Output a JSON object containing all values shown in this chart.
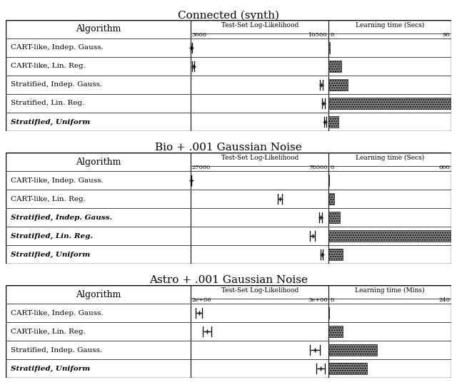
{
  "panels": [
    {
      "title": "Connected (synth)",
      "algorithms": [
        {
          "name": "CART-like, Indep. Gauss.",
          "italic": false,
          "bold": false
        },
        {
          "name": "CART-like, Lin. Reg.",
          "italic": false,
          "bold": false
        },
        {
          "name": "Stratified, Indep. Gauss.",
          "italic": false,
          "bold": false
        },
        {
          "name": "Stratified, Lin. Reg.",
          "italic": false,
          "bold": false
        },
        {
          "name": "Stratified, Uniform",
          "italic": true,
          "bold": true
        }
      ],
      "ll_label": "Test-Set Log-Likelihood",
      "ll_min": 3000,
      "ll_max": 10500,
      "time_label": "Learning time (Secs)",
      "time_min": 0,
      "time_max": 90,
      "ll_values": [
        3050,
        3150,
        10100,
        10200,
        10300
      ],
      "ll_errors": [
        40,
        60,
        70,
        80,
        50
      ],
      "time_values": [
        1,
        9,
        14,
        90,
        7
      ]
    },
    {
      "title": "Bio + .001 Gaussian Noise",
      "algorithms": [
        {
          "name": "CART-like, Indep. Gauss.",
          "italic": false,
          "bold": false
        },
        {
          "name": "CART-like, Lin. Reg.",
          "italic": false,
          "bold": false
        },
        {
          "name": "Stratified, Indep. Gauss.",
          "italic": true,
          "bold": true
        },
        {
          "name": "Stratified, Lin. Reg.",
          "italic": true,
          "bold": true
        },
        {
          "name": "Stratified, Uniform",
          "italic": true,
          "bold": true
        }
      ],
      "ll_label": "Test-Set Log-Likelihood",
      "ll_min": 27000,
      "ll_max": 78000,
      "time_label": "Learning time (Secs)",
      "time_min": 0,
      "time_max": 600,
      "ll_values": [
        27200,
        60000,
        75000,
        72000,
        75500
      ],
      "ll_errors": [
        200,
        700,
        600,
        900,
        400
      ],
      "time_values": [
        2,
        28,
        55,
        600,
        68
      ]
    },
    {
      "title": "Astro + .001 Gaussian Noise",
      "algorithms": [
        {
          "name": "CART-like, Indep. Gauss.",
          "italic": false,
          "bold": false
        },
        {
          "name": "CART-like, Lin. Reg.",
          "italic": false,
          "bold": false
        },
        {
          "name": "Stratified, Indep. Gauss.",
          "italic": false,
          "bold": false
        },
        {
          "name": "Stratified, Uniform",
          "italic": true,
          "bold": true
        }
      ],
      "ll_label": "Test-Set Log-Likelihood",
      "ll_min": 2000000,
      "ll_max": 3000000,
      "time_label": "Learning time (Mins)",
      "time_min": 0,
      "time_max": 240,
      "ll_values": [
        2060000,
        2120000,
        2900000,
        2940000
      ],
      "ll_errors": [
        25000,
        30000,
        35000,
        30000
      ],
      "time_values": [
        1,
        28,
        95,
        75
      ]
    }
  ],
  "col_splits": [
    0.415,
    0.725
  ],
  "title_fontsize": 11,
  "algo_fontsize": 7.5,
  "header_fontsize": 6.5,
  "tick_fontsize": 6.0
}
